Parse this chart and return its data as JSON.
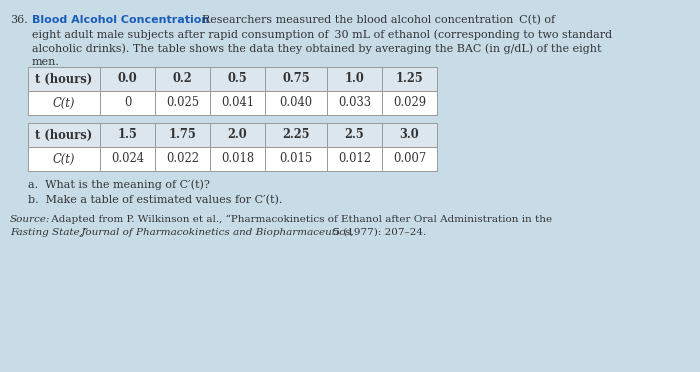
{
  "background_color": "#c8dce8",
  "title_bold_color": "#1a5eb8",
  "header_bg": "#dce6ef",
  "table_bg": "#ffffff",
  "table_border": "#999999",
  "text_color": "#333333",
  "table1_headers": [
    "t (hours)",
    "0.0",
    "0.2",
    "0.5",
    "0.75",
    "1.0",
    "1.25"
  ],
  "table1_row2": [
    "C(t)",
    "0",
    "0.025",
    "0.041",
    "0.040",
    "0.033",
    "0.029"
  ],
  "table2_headers": [
    "t (hours)",
    "1.5",
    "1.75",
    "2.0",
    "2.25",
    "2.5",
    "3.0"
  ],
  "table2_row2": [
    "C(t)",
    "0.024",
    "0.022",
    "0.018",
    "0.015",
    "0.012",
    "0.007"
  ]
}
